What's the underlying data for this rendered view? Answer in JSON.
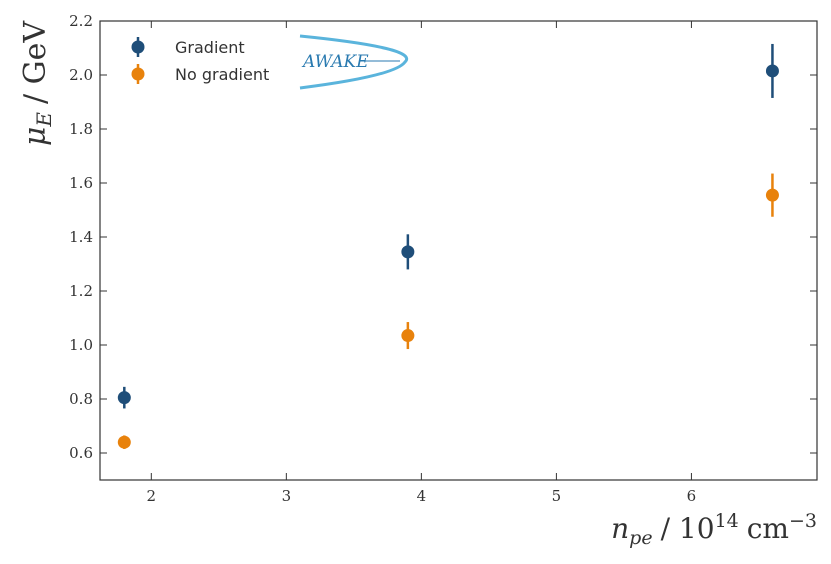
{
  "chart_data": {
    "type": "scatter",
    "x": [
      1.8,
      3.9,
      6.6
    ],
    "series": [
      {
        "name": "Gradient",
        "color": "#1f4e79",
        "values": [
          0.805,
          1.345,
          2.015
        ],
        "errors": [
          0.04,
          0.065,
          0.1
        ]
      },
      {
        "name": "No gradient",
        "color": "#e8820c",
        "values": [
          0.64,
          1.035,
          1.555
        ],
        "errors": [
          0.025,
          0.05,
          0.08
        ]
      }
    ],
    "xlim": [
      1.62,
      6.93
    ],
    "ylim": [
      0.5,
      2.2
    ],
    "xticks": [
      2,
      3,
      4,
      5,
      6
    ],
    "yticks": [
      0.6,
      0.8,
      {
        "value": 1,
        "label": "1.0"
      },
      1.2,
      1.4,
      1.6,
      1.8,
      {
        "value": 2,
        "label": "2.0"
      },
      2.2
    ],
    "ylabel": {
      "symbol": "μ",
      "subscript": "E",
      "unit": "/ GeV"
    },
    "xlabel": {
      "symbol": "n",
      "subscript": "pe",
      "unit": "/ 10",
      "exponent": "14",
      "unit2": "cm",
      "exponent2": "−3"
    },
    "legend": "upper left",
    "logo": "AWAKE"
  }
}
